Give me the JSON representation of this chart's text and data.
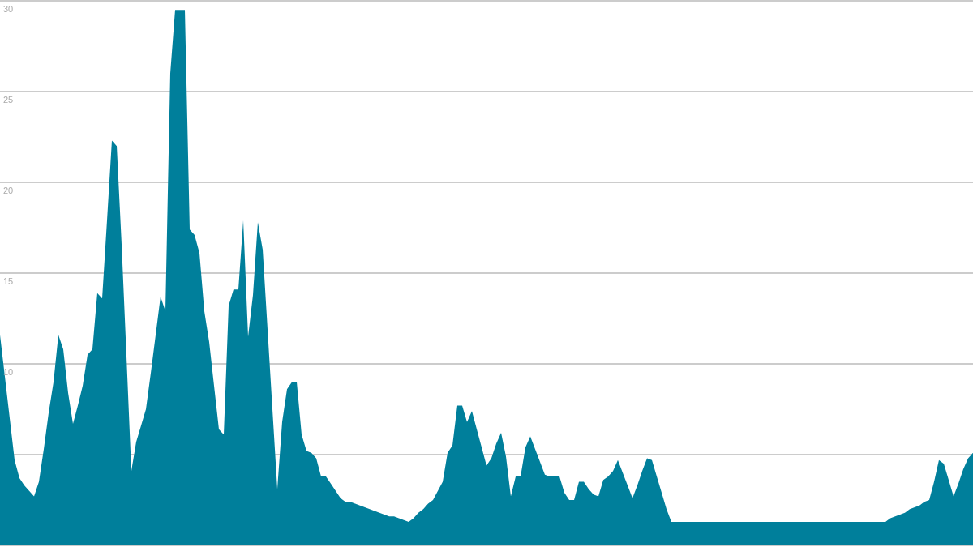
{
  "chart_data": {
    "type": "area",
    "color": "#007f9b",
    "grid": "y",
    "tick_labels": "y",
    "ylim": [
      0,
      30
    ],
    "yticks": [
      {
        "value": 0,
        "label": null
      },
      {
        "value": 5,
        "label": null
      },
      10,
      15,
      20,
      25,
      30
    ],
    "categories": [
      null,
      null,
      null,
      null,
      null,
      null,
      null,
      null,
      null,
      null,
      null,
      null,
      null,
      null,
      null,
      null,
      null,
      null,
      null,
      null,
      null,
      null,
      null,
      null,
      null,
      null,
      null,
      null,
      null,
      null,
      null,
      null,
      null,
      null,
      null,
      null,
      null,
      null,
      null,
      null,
      null,
      null,
      null,
      null,
      null,
      null,
      null,
      null,
      null,
      null,
      null,
      null,
      null,
      null,
      null,
      null,
      null,
      null,
      null,
      null,
      null,
      null,
      null,
      null,
      null,
      null,
      null,
      null,
      null,
      null,
      null,
      null,
      null,
      null,
      null,
      null,
      null,
      null,
      null,
      null,
      null,
      null,
      null,
      null,
      null,
      null,
      null,
      null,
      null,
      null,
      null,
      null,
      null,
      null,
      null,
      null,
      null,
      null,
      null,
      null,
      null,
      null,
      null,
      null,
      null,
      null,
      null,
      null,
      null,
      null,
      null,
      null,
      null,
      null,
      null,
      null,
      null,
      null,
      null,
      null,
      null,
      null,
      null,
      null,
      null,
      null,
      null,
      null,
      null,
      null,
      null,
      null,
      null,
      null,
      null,
      null,
      null,
      null,
      null,
      null,
      null,
      null,
      null,
      null,
      null,
      null,
      null,
      null,
      null,
      null,
      null,
      null,
      null,
      null,
      null,
      null,
      null,
      null,
      null,
      null,
      null,
      null,
      null,
      null,
      null,
      null,
      null,
      null,
      null,
      null,
      null,
      null,
      null,
      null,
      null,
      null,
      null,
      null,
      null,
      null,
      null,
      null,
      null,
      null,
      null,
      null,
      null,
      null,
      null,
      null,
      null,
      null,
      null,
      null,
      null,
      null,
      null,
      null,
      null,
      null,
      null
    ],
    "values": [
      11.6,
      9.3,
      7.0,
      4.7,
      3.7,
      3.3,
      3.0,
      2.7,
      3.5,
      5.3,
      7.3,
      9.0,
      11.6,
      10.8,
      8.4,
      6.7,
      7.7,
      8.8,
      10.5,
      10.8,
      13.9,
      13.6,
      17.9,
      22.3,
      22.0,
      16.6,
      10.4,
      4.1,
      5.7,
      6.6,
      7.5,
      9.5,
      11.6,
      13.7,
      12.9,
      26.0,
      29.5,
      29.5,
      29.5,
      17.4,
      17.1,
      16.1,
      12.9,
      11.2,
      8.8,
      6.4,
      6.1,
      13.2,
      14.1,
      14.1,
      17.9,
      11.5,
      13.8,
      17.8,
      16.3,
      11.9,
      7.5,
      3.1,
      6.8,
      8.6,
      9.0,
      9.0,
      6.1,
      5.2,
      5.1,
      4.8,
      3.8,
      3.8,
      3.4,
      3.0,
      2.6,
      2.4,
      2.4,
      2.3,
      2.2,
      2.1,
      2.0,
      1.9,
      1.8,
      1.7,
      1.6,
      1.6,
      1.5,
      1.4,
      1.3,
      1.5,
      1.8,
      2.0,
      2.3,
      2.5,
      3.0,
      3.5,
      5.1,
      5.5,
      7.7,
      7.7,
      6.8,
      7.4,
      6.4,
      5.4,
      4.4,
      4.8,
      5.6,
      6.2,
      4.9,
      2.7,
      3.8,
      3.8,
      5.4,
      6.0,
      5.3,
      4.6,
      3.9,
      3.8,
      3.8,
      3.8,
      2.9,
      2.5,
      2.5,
      3.5,
      3.5,
      3.1,
      2.8,
      2.7,
      3.6,
      3.8,
      4.1,
      4.7,
      4.0,
      3.3,
      2.6,
      3.3,
      4.1,
      4.8,
      4.7,
      3.8,
      2.9,
      2.0,
      1.3,
      1.3,
      1.3,
      1.3,
      1.3,
      1.3,
      1.3,
      1.3,
      1.3,
      1.3,
      1.3,
      1.3,
      1.3,
      1.3,
      1.3,
      1.3,
      1.3,
      1.3,
      1.3,
      1.3,
      1.3,
      1.3,
      1.3,
      1.3,
      1.3,
      1.3,
      1.3,
      1.3,
      1.3,
      1.3,
      1.3,
      1.3,
      1.3,
      1.3,
      1.3,
      1.3,
      1.3,
      1.3,
      1.3,
      1.3,
      1.3,
      1.3,
      1.3,
      1.3,
      1.3,
      1.5,
      1.6,
      1.7,
      1.8,
      2.0,
      2.1,
      2.2,
      2.4,
      2.5,
      3.5,
      4.7,
      4.5,
      3.6,
      2.7,
      3.4,
      4.2,
      4.8,
      5.1
    ]
  }
}
